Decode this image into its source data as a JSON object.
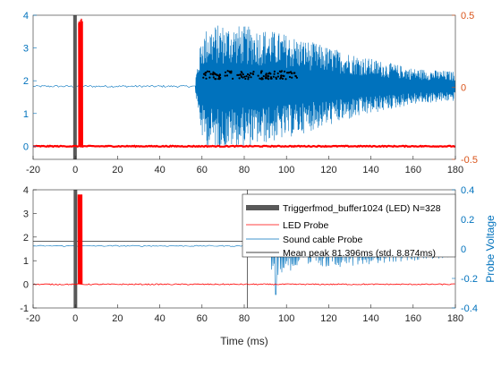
{
  "chart_data": [
    {
      "type": "line",
      "title": "",
      "xlim": [
        -20,
        180
      ],
      "xticks": [
        -20,
        0,
        20,
        40,
        60,
        80,
        100,
        120,
        140,
        160,
        180
      ],
      "xlabel": "",
      "ylim_left": [
        -0.4,
        4
      ],
      "yticks_left": [
        0,
        1,
        2,
        3,
        4
      ],
      "ylim_right": [
        -0.5,
        0.5
      ],
      "yticks_right": [
        -0.5,
        0,
        0.5
      ],
      "ytick_labels_right": [
        "-0.5",
        "0",
        "0.5"
      ],
      "colors": {
        "left_axis": "#0072bd",
        "right_axis": "#d95319",
        "trigger": "#595959",
        "led": "#ff0000",
        "sound": "#0072bd",
        "peaks": "#000000"
      },
      "series": [
        {
          "axis": "left",
          "kind": "trigger-bar",
          "x": [
            -1,
            0.5
          ],
          "y": [
            -0.4,
            4
          ]
        },
        {
          "axis": "left",
          "kind": "led-probe",
          "baseline": 0,
          "spike_x": [
            1.5,
            3.5
          ],
          "spike_peak": 3.9
        },
        {
          "axis": "left",
          "kind": "sound-probe",
          "baseline": 1.83,
          "burst_start": 57,
          "envelope_x": [
            57,
            60,
            63,
            70,
            80,
            90,
            100,
            120,
            140,
            160,
            180
          ],
          "envelope_amp": [
            0.3,
            1.6,
            1.85,
            1.9,
            1.85,
            1.75,
            1.6,
            1.2,
            0.85,
            0.55,
            0.45
          ]
        },
        {
          "axis": "left",
          "kind": "peak-markers",
          "x_range": [
            60,
            105
          ],
          "y_range": [
            2.05,
            2.3
          ],
          "count": 328
        }
      ]
    },
    {
      "type": "line",
      "title": "",
      "xlim": [
        -20,
        180
      ],
      "xticks": [
        -20,
        0,
        20,
        40,
        60,
        80,
        100,
        120,
        140,
        160,
        180
      ],
      "xlabel": "Time (ms)",
      "ylim_left": [
        -1,
        4
      ],
      "yticks_left": [
        -1,
        0,
        1,
        2,
        3,
        4
      ],
      "ylim_right": [
        -0.4,
        0.4
      ],
      "yticks_right": [
        -0.4,
        -0.2,
        0,
        0.2,
        0.4
      ],
      "ytick_labels_right": [
        "-0.4",
        "-0.2",
        "0",
        "0.2",
        "0.4"
      ],
      "ylabel_right": "Probe Voltage",
      "legend": {
        "placement": "top-right",
        "entries": [
          {
            "label": "Triggerfmod_buffer1024 (LED)   N=328",
            "color": "#595959",
            "style": "thick"
          },
          {
            "label": "LED Probe",
            "color": "#ff0000",
            "style": "line"
          },
          {
            "label": "Sound cable Probe",
            "color": "#0072bd",
            "style": "line"
          },
          {
            "label": "Mean peak 81.396ms (std. 8.874ms)",
            "color": "#000000",
            "style": "line"
          }
        ]
      },
      "series": [
        {
          "axis": "left",
          "kind": "trigger-bar",
          "x": [
            -0.8,
            0.6
          ],
          "y": [
            -1,
            4
          ]
        },
        {
          "axis": "left",
          "kind": "led-probe",
          "baseline": 0
        },
        {
          "axis": "right",
          "kind": "sound-probe",
          "baseline": 0.02,
          "burst_start": 93,
          "burst_amp_start": 0.22,
          "burst_amp_end": 0.08,
          "dip_x": 95,
          "dip_y": -0.31
        },
        {
          "axis": "left",
          "kind": "mean-peak-line",
          "x": 81.396,
          "y": 1.83
        }
      ]
    }
  ]
}
